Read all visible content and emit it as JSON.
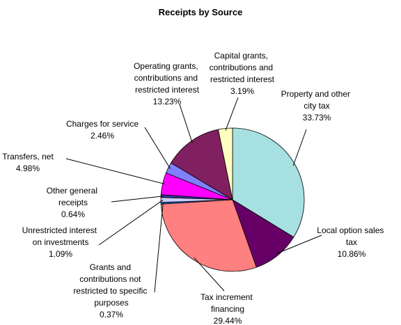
{
  "chart_data": {
    "type": "pie",
    "title": "Receipts by Source",
    "categories": [
      "Property and other city tax",
      "Local option sales tax",
      "Tax increment financing",
      "Grants and contributions not restricted to specific purposes",
      "Unrestricted interest on investments",
      "Other general receipts",
      "Transfers, net",
      "Charges for service",
      "Operating grants, contributions and restricted interest",
      "Capital grants, contributions and restricted interest"
    ],
    "values": [
      33.73,
      10.86,
      29.44,
      0.37,
      1.09,
      0.64,
      4.98,
      2.46,
      13.23,
      3.19
    ],
    "value_labels": [
      "33.73%",
      "10.86%",
      "29.44%",
      "0.37%",
      "1.09%",
      "0.64%",
      "4.98%",
      "2.46%",
      "13.23%",
      "3.19%"
    ],
    "colors": [
      "#a6e0e0",
      "#660066",
      "#ff8080",
      "#0066cc",
      "#ccccff",
      "#333399",
      "#ff00ff",
      "#8080ff",
      "#802060",
      "#ffffc0"
    ]
  }
}
